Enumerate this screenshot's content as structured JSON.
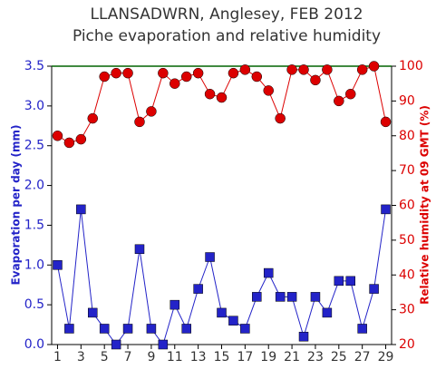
{
  "chart_data": {
    "type": "line",
    "title": "LLANSADWRN, Anglesey, FEB 2012",
    "subtitle": "Piche evaporation and relative humidity",
    "y_label": "Evaporation per day (mm)",
    "y2_label": "Relative humidity at 09 GMT (%)",
    "x": [
      1,
      2,
      3,
      4,
      5,
      6,
      7,
      8,
      9,
      10,
      11,
      12,
      13,
      14,
      15,
      16,
      17,
      18,
      19,
      20,
      21,
      22,
      23,
      24,
      25,
      26,
      27,
      28,
      29
    ],
    "xlim": [
      0.5,
      29.5
    ],
    "xticks": [
      1,
      3,
      5,
      7,
      9,
      11,
      13,
      15,
      17,
      19,
      21,
      23,
      25,
      27,
      29
    ],
    "ylim": [
      0,
      3.5
    ],
    "yticks": [
      {
        "value": 0,
        "label": "0.0"
      },
      0.5,
      {
        "value": 1,
        "label": "1.0"
      },
      1.5,
      {
        "value": 2,
        "label": "2.0"
      },
      2.5,
      {
        "value": 3,
        "label": "3.0"
      },
      3.5
    ],
    "y2lim": [
      20,
      100
    ],
    "y2ticks": [
      20,
      30,
      40,
      50,
      60,
      70,
      80,
      90,
      100
    ],
    "series": [
      {
        "color": "#2323c8",
        "marker": "square",
        "values": [
          1.0,
          0.2,
          1.7,
          0.4,
          0.2,
          0.0,
          0.2,
          1.2,
          0.2,
          0.0,
          0.5,
          0.2,
          0.7,
          1.1,
          0.4,
          0.3,
          0.2,
          0.6,
          0.9,
          0.6,
          0.6,
          0.1,
          0.6,
          0.4,
          0.8,
          0.8,
          0.2,
          0.7,
          1.7
        ]
      },
      {
        "color": "#dc0000",
        "marker": "circle",
        "axis": "y2",
        "values": [
          80,
          78,
          79,
          85,
          97,
          98,
          98,
          84,
          87,
          98,
          95,
          97,
          98,
          92,
          91,
          98,
          99,
          97,
          93,
          85,
          99,
          99,
          96,
          99,
          90,
          92,
          99,
          100,
          84
        ]
      }
    ]
  }
}
